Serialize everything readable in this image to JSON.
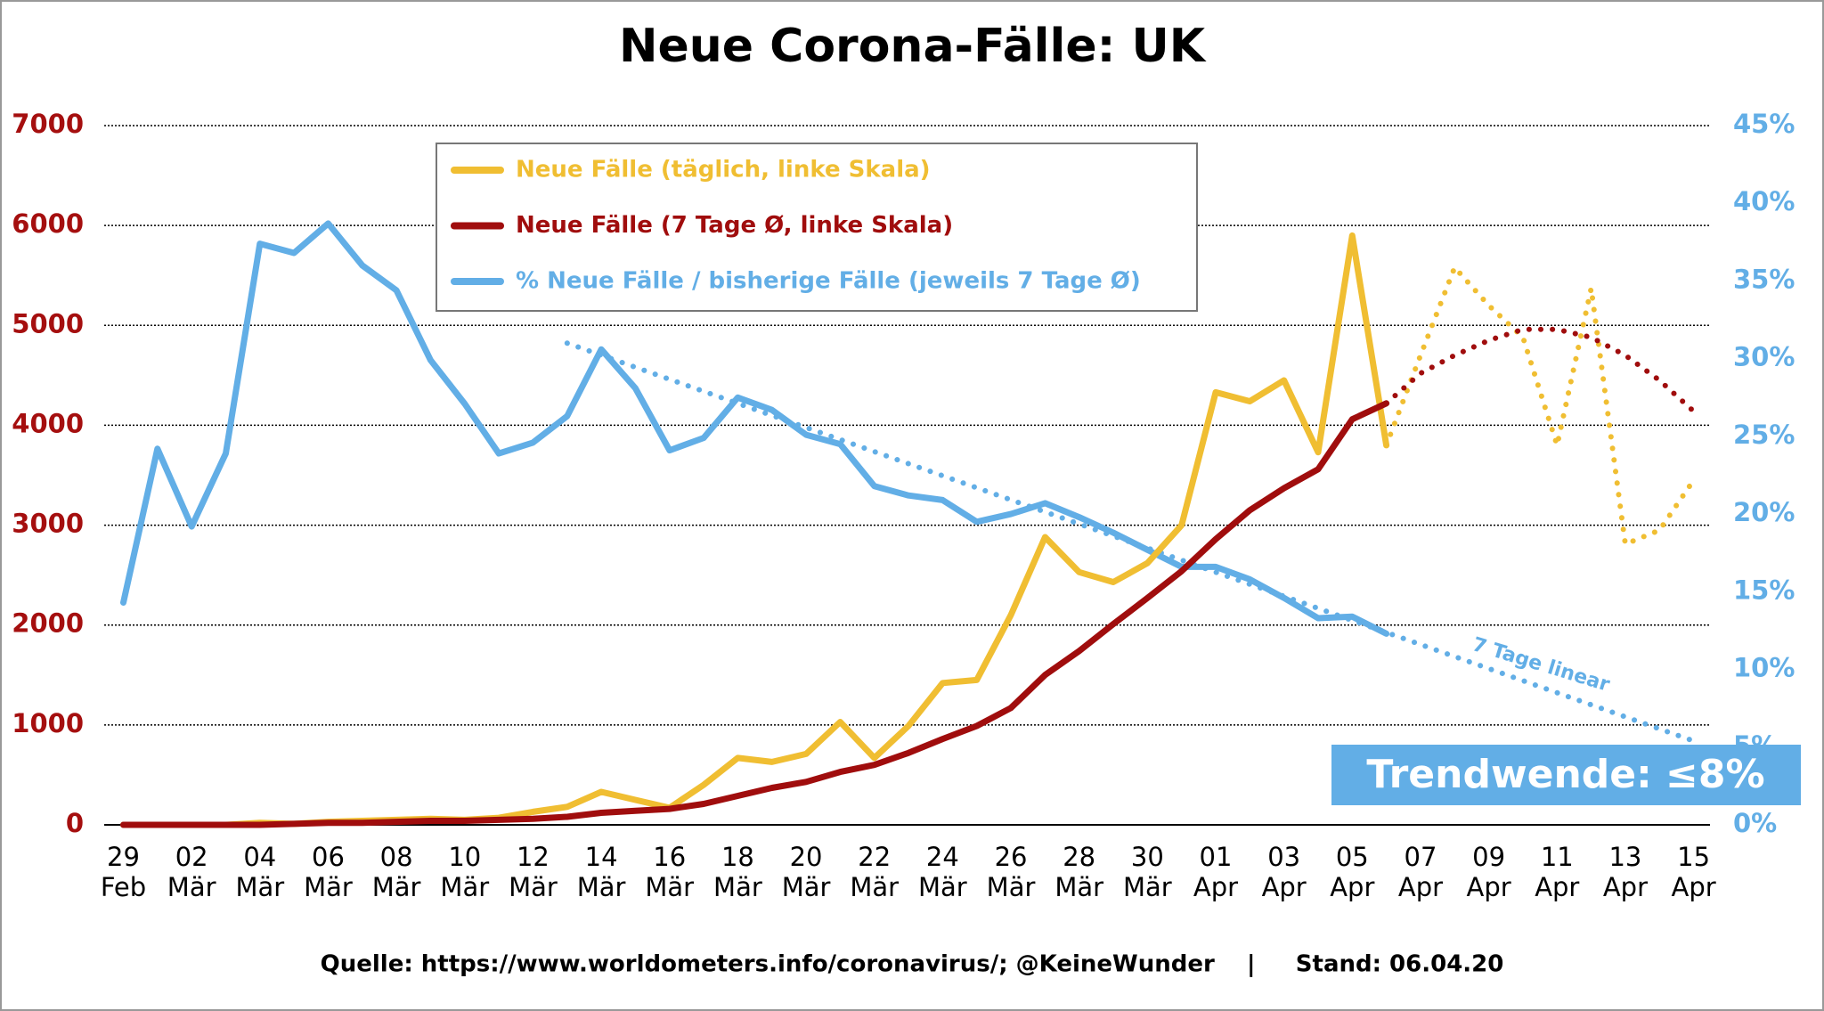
{
  "chart_data": {
    "type": "line",
    "title": "Neue Corona-Fälle: UK",
    "footer": "Quelle: https://www.worldometers.info/coronavirus/; @KeineWunder    |     Stand: 06.04.20",
    "annotation": "Trendwende: ≤8%",
    "categories": [
      "29 Feb",
      null,
      "02 Mär",
      null,
      "04 Mär",
      null,
      "06 Mär",
      null,
      "08 Mär",
      null,
      "10 Mär",
      null,
      "12 Mär",
      null,
      "14 Mär",
      null,
      "16 Mär",
      null,
      "18 Mär",
      null,
      "20 Mär",
      null,
      "22 Mär",
      null,
      "24 Mär",
      null,
      "26 Mär",
      null,
      "28 Mär",
      null,
      "30 Mär",
      null,
      "01 Apr",
      null,
      "03 Apr",
      null,
      "05 Apr",
      null,
      "07 Apr",
      null,
      "09 Apr",
      null,
      "11 Apr",
      null,
      "13 Apr",
      null,
      "15 Apr"
    ],
    "ylim": [
      0,
      7000
    ],
    "yticks": [
      0,
      1000,
      2000,
      3000,
      4000,
      5000,
      6000,
      7000
    ],
    "y2lim": [
      0,
      45
    ],
    "y2ticks": [
      {
        "value": 0,
        "label": "0%"
      },
      {
        "value": 5,
        "label": "5%"
      },
      {
        "value": 10,
        "label": "10%"
      },
      {
        "value": 15,
        "label": "15%"
      },
      {
        "value": 20,
        "label": "20%"
      },
      {
        "value": 25,
        "label": "25%"
      },
      {
        "value": 30,
        "label": "30%"
      },
      {
        "value": 35,
        "label": "35%"
      },
      {
        "value": 40,
        "label": "40%"
      },
      {
        "value": 45,
        "label": "45%"
      }
    ],
    "grid": true,
    "series": [
      {
        "name": "Neue Fälle (täglich, linke Skala)",
        "color": "#f0be32",
        "values": [
          0,
          0,
          0,
          0,
          20,
          10,
          30,
          40,
          50,
          60,
          50,
          70,
          130,
          180,
          330,
          250,
          170,
          400,
          670,
          630,
          710,
          1030,
          670,
          990,
          1420,
          1450,
          2100,
          2880,
          2530,
          2430,
          2620,
          3000,
          4330,
          4240,
          4450,
          3730,
          5900,
          3800,
          null,
          null,
          null,
          null,
          null,
          null,
          null,
          null,
          null
        ],
        "projection": [
          null,
          null,
          null,
          null,
          null,
          null,
          null,
          null,
          null,
          null,
          null,
          null,
          null,
          null,
          null,
          null,
          null,
          null,
          null,
          null,
          null,
          null,
          null,
          null,
          null,
          null,
          null,
          null,
          null,
          null,
          null,
          null,
          null,
          null,
          null,
          null,
          null,
          3800,
          4700,
          5580,
          5200,
          4880,
          3800,
          5370,
          2810,
          2950,
          3450
        ]
      },
      {
        "name": "Neue Fälle (7 Tage Ø, linke Skala)",
        "color": "#a00d0d",
        "values": [
          0,
          0,
          0,
          0,
          0,
          10,
          20,
          20,
          30,
          40,
          40,
          50,
          60,
          80,
          120,
          140,
          160,
          210,
          290,
          370,
          430,
          530,
          600,
          720,
          860,
          990,
          1170,
          1500,
          1740,
          2010,
          2270,
          2540,
          2860,
          3150,
          3370,
          3560,
          4060,
          4220,
          null,
          null,
          null,
          null,
          null,
          null,
          null,
          null,
          null
        ],
        "projection": [
          null,
          null,
          null,
          null,
          null,
          null,
          null,
          null,
          null,
          null,
          null,
          null,
          null,
          null,
          null,
          null,
          null,
          null,
          null,
          null,
          null,
          null,
          null,
          null,
          null,
          null,
          null,
          null,
          null,
          null,
          null,
          null,
          null,
          null,
          null,
          null,
          null,
          4220,
          4520,
          4700,
          4850,
          4960,
          4960,
          4880,
          4700,
          4450,
          4140
        ]
      },
      {
        "name": "% Neue Fälle / bisherige Fälle (jeweils 7 Tage Ø)",
        "color": "#62aee6",
        "axis": "y2",
        "values": [
          14.3,
          24.2,
          19.2,
          23.9,
          37.4,
          36.8,
          38.7,
          36.0,
          34.4,
          29.9,
          27.1,
          23.9,
          24.6,
          26.3,
          30.6,
          28.1,
          24.1,
          24.9,
          27.5,
          26.7,
          25.1,
          24.5,
          21.8,
          21.2,
          20.9,
          19.5,
          20.0,
          20.7,
          19.8,
          18.8,
          17.7,
          16.6,
          16.6,
          15.8,
          14.6,
          13.3,
          13.4,
          12.3,
          null,
          null,
          null,
          null,
          null,
          null,
          null,
          null,
          null
        ]
      }
    ],
    "trend": {
      "label": "7 Tage linear",
      "color": "#62aee6",
      "axis": "y2",
      "x": [
        13,
        46
      ],
      "values": [
        31.0,
        5.4
      ]
    }
  }
}
